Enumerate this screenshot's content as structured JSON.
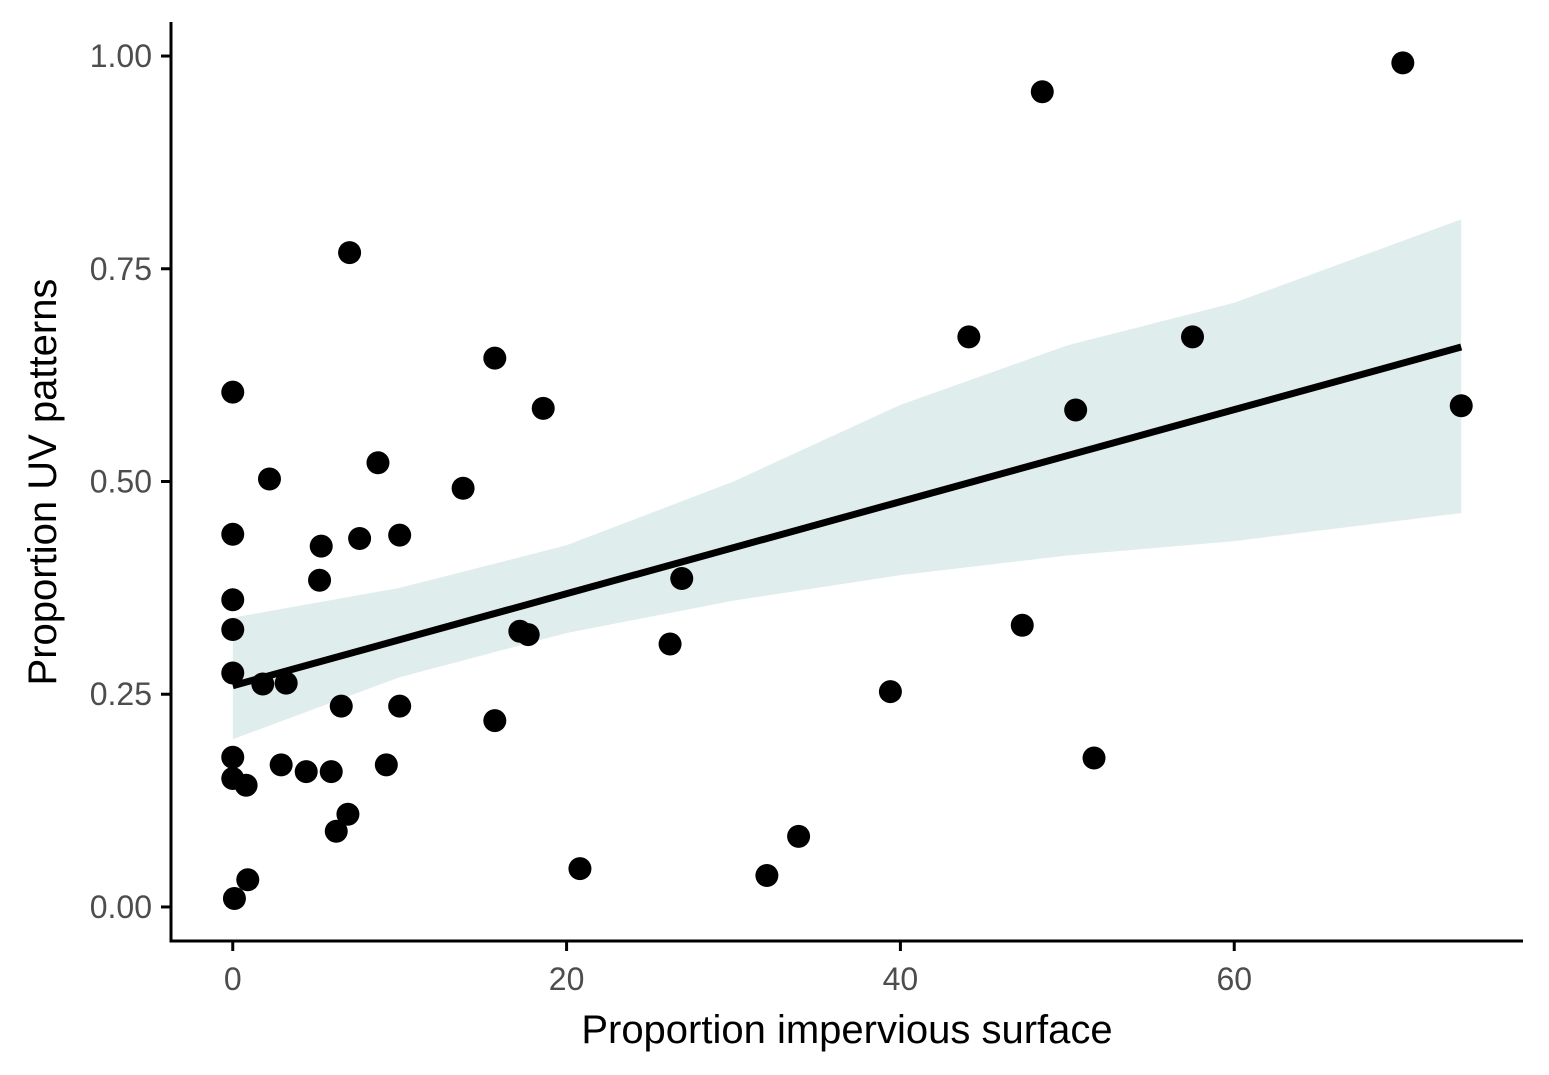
{
  "chart_data": {
    "type": "scatter",
    "title": "",
    "xlabel": "Proportion impervious surface",
    "ylabel": "Proportion UV patterns",
    "xlim": [
      -3.7,
      77.3
    ],
    "ylim": [
      -0.04,
      1.04
    ],
    "x_ticks": [
      0,
      20,
      40,
      60
    ],
    "x_tick_labels": [
      "0",
      "20",
      "40",
      "60"
    ],
    "y_ticks": [
      0,
      0.25,
      0.5,
      0.75,
      1.0
    ],
    "y_tick_labels": [
      "0.00",
      "0.25",
      "0.50",
      "0.75",
      "1.00"
    ],
    "grid": false,
    "legend": "none",
    "points": [
      {
        "x": 0.0,
        "y": 0.605
      },
      {
        "x": 0.0,
        "y": 0.438
      },
      {
        "x": 0.0,
        "y": 0.361
      },
      {
        "x": 0.0,
        "y": 0.326
      },
      {
        "x": 0.0,
        "y": 0.275
      },
      {
        "x": 0.0,
        "y": 0.176
      },
      {
        "x": 0.0,
        "y": 0.151
      },
      {
        "x": 0.1,
        "y": 0.01
      },
      {
        "x": 0.8,
        "y": 0.143
      },
      {
        "x": 0.9,
        "y": 0.032
      },
      {
        "x": 1.8,
        "y": 0.262
      },
      {
        "x": 2.2,
        "y": 0.503
      },
      {
        "x": 2.9,
        "y": 0.167
      },
      {
        "x": 3.2,
        "y": 0.263
      },
      {
        "x": 4.4,
        "y": 0.159
      },
      {
        "x": 5.2,
        "y": 0.384
      },
      {
        "x": 5.3,
        "y": 0.424
      },
      {
        "x": 5.9,
        "y": 0.159
      },
      {
        "x": 6.2,
        "y": 0.089
      },
      {
        "x": 6.5,
        "y": 0.236
      },
      {
        "x": 6.9,
        "y": 0.109
      },
      {
        "x": 7.0,
        "y": 0.769
      },
      {
        "x": 7.6,
        "y": 0.433
      },
      {
        "x": 8.7,
        "y": 0.522
      },
      {
        "x": 9.2,
        "y": 0.167
      },
      {
        "x": 10.0,
        "y": 0.437
      },
      {
        "x": 10.0,
        "y": 0.236
      },
      {
        "x": 13.8,
        "y": 0.492
      },
      {
        "x": 15.7,
        "y": 0.645
      },
      {
        "x": 15.7,
        "y": 0.219
      },
      {
        "x": 17.2,
        "y": 0.324
      },
      {
        "x": 17.7,
        "y": 0.32
      },
      {
        "x": 18.6,
        "y": 0.586
      },
      {
        "x": 20.8,
        "y": 0.045
      },
      {
        "x": 26.2,
        "y": 0.309
      },
      {
        "x": 26.9,
        "y": 0.386
      },
      {
        "x": 32.0,
        "y": 0.037
      },
      {
        "x": 33.9,
        "y": 0.083
      },
      {
        "x": 39.4,
        "y": 0.253
      },
      {
        "x": 44.1,
        "y": 0.67
      },
      {
        "x": 47.3,
        "y": 0.331
      },
      {
        "x": 48.5,
        "y": 0.958
      },
      {
        "x": 50.5,
        "y": 0.584
      },
      {
        "x": 51.6,
        "y": 0.175
      },
      {
        "x": 57.5,
        "y": 0.67
      },
      {
        "x": 70.1,
        "y": 0.992
      },
      {
        "x": 73.6,
        "y": 0.589
      }
    ],
    "fit_line": {
      "x": [
        0,
        73.6
      ],
      "y": [
        0.26,
        0.658
      ]
    },
    "confidence_band": {
      "x": [
        0,
        10,
        20,
        30,
        40,
        50,
        60,
        73.6
      ],
      "lower": [
        0.197,
        0.27,
        0.322,
        0.36,
        0.39,
        0.413,
        0.43,
        0.463
      ],
      "upper": [
        0.34,
        0.375,
        0.425,
        0.5,
        0.59,
        0.66,
        0.71,
        0.808
      ]
    },
    "colors": {
      "points": "#000000",
      "fit_line": "#000000",
      "band": "#dfedec",
      "axis": "#000000",
      "tick_label": "#4d4d4d"
    }
  }
}
